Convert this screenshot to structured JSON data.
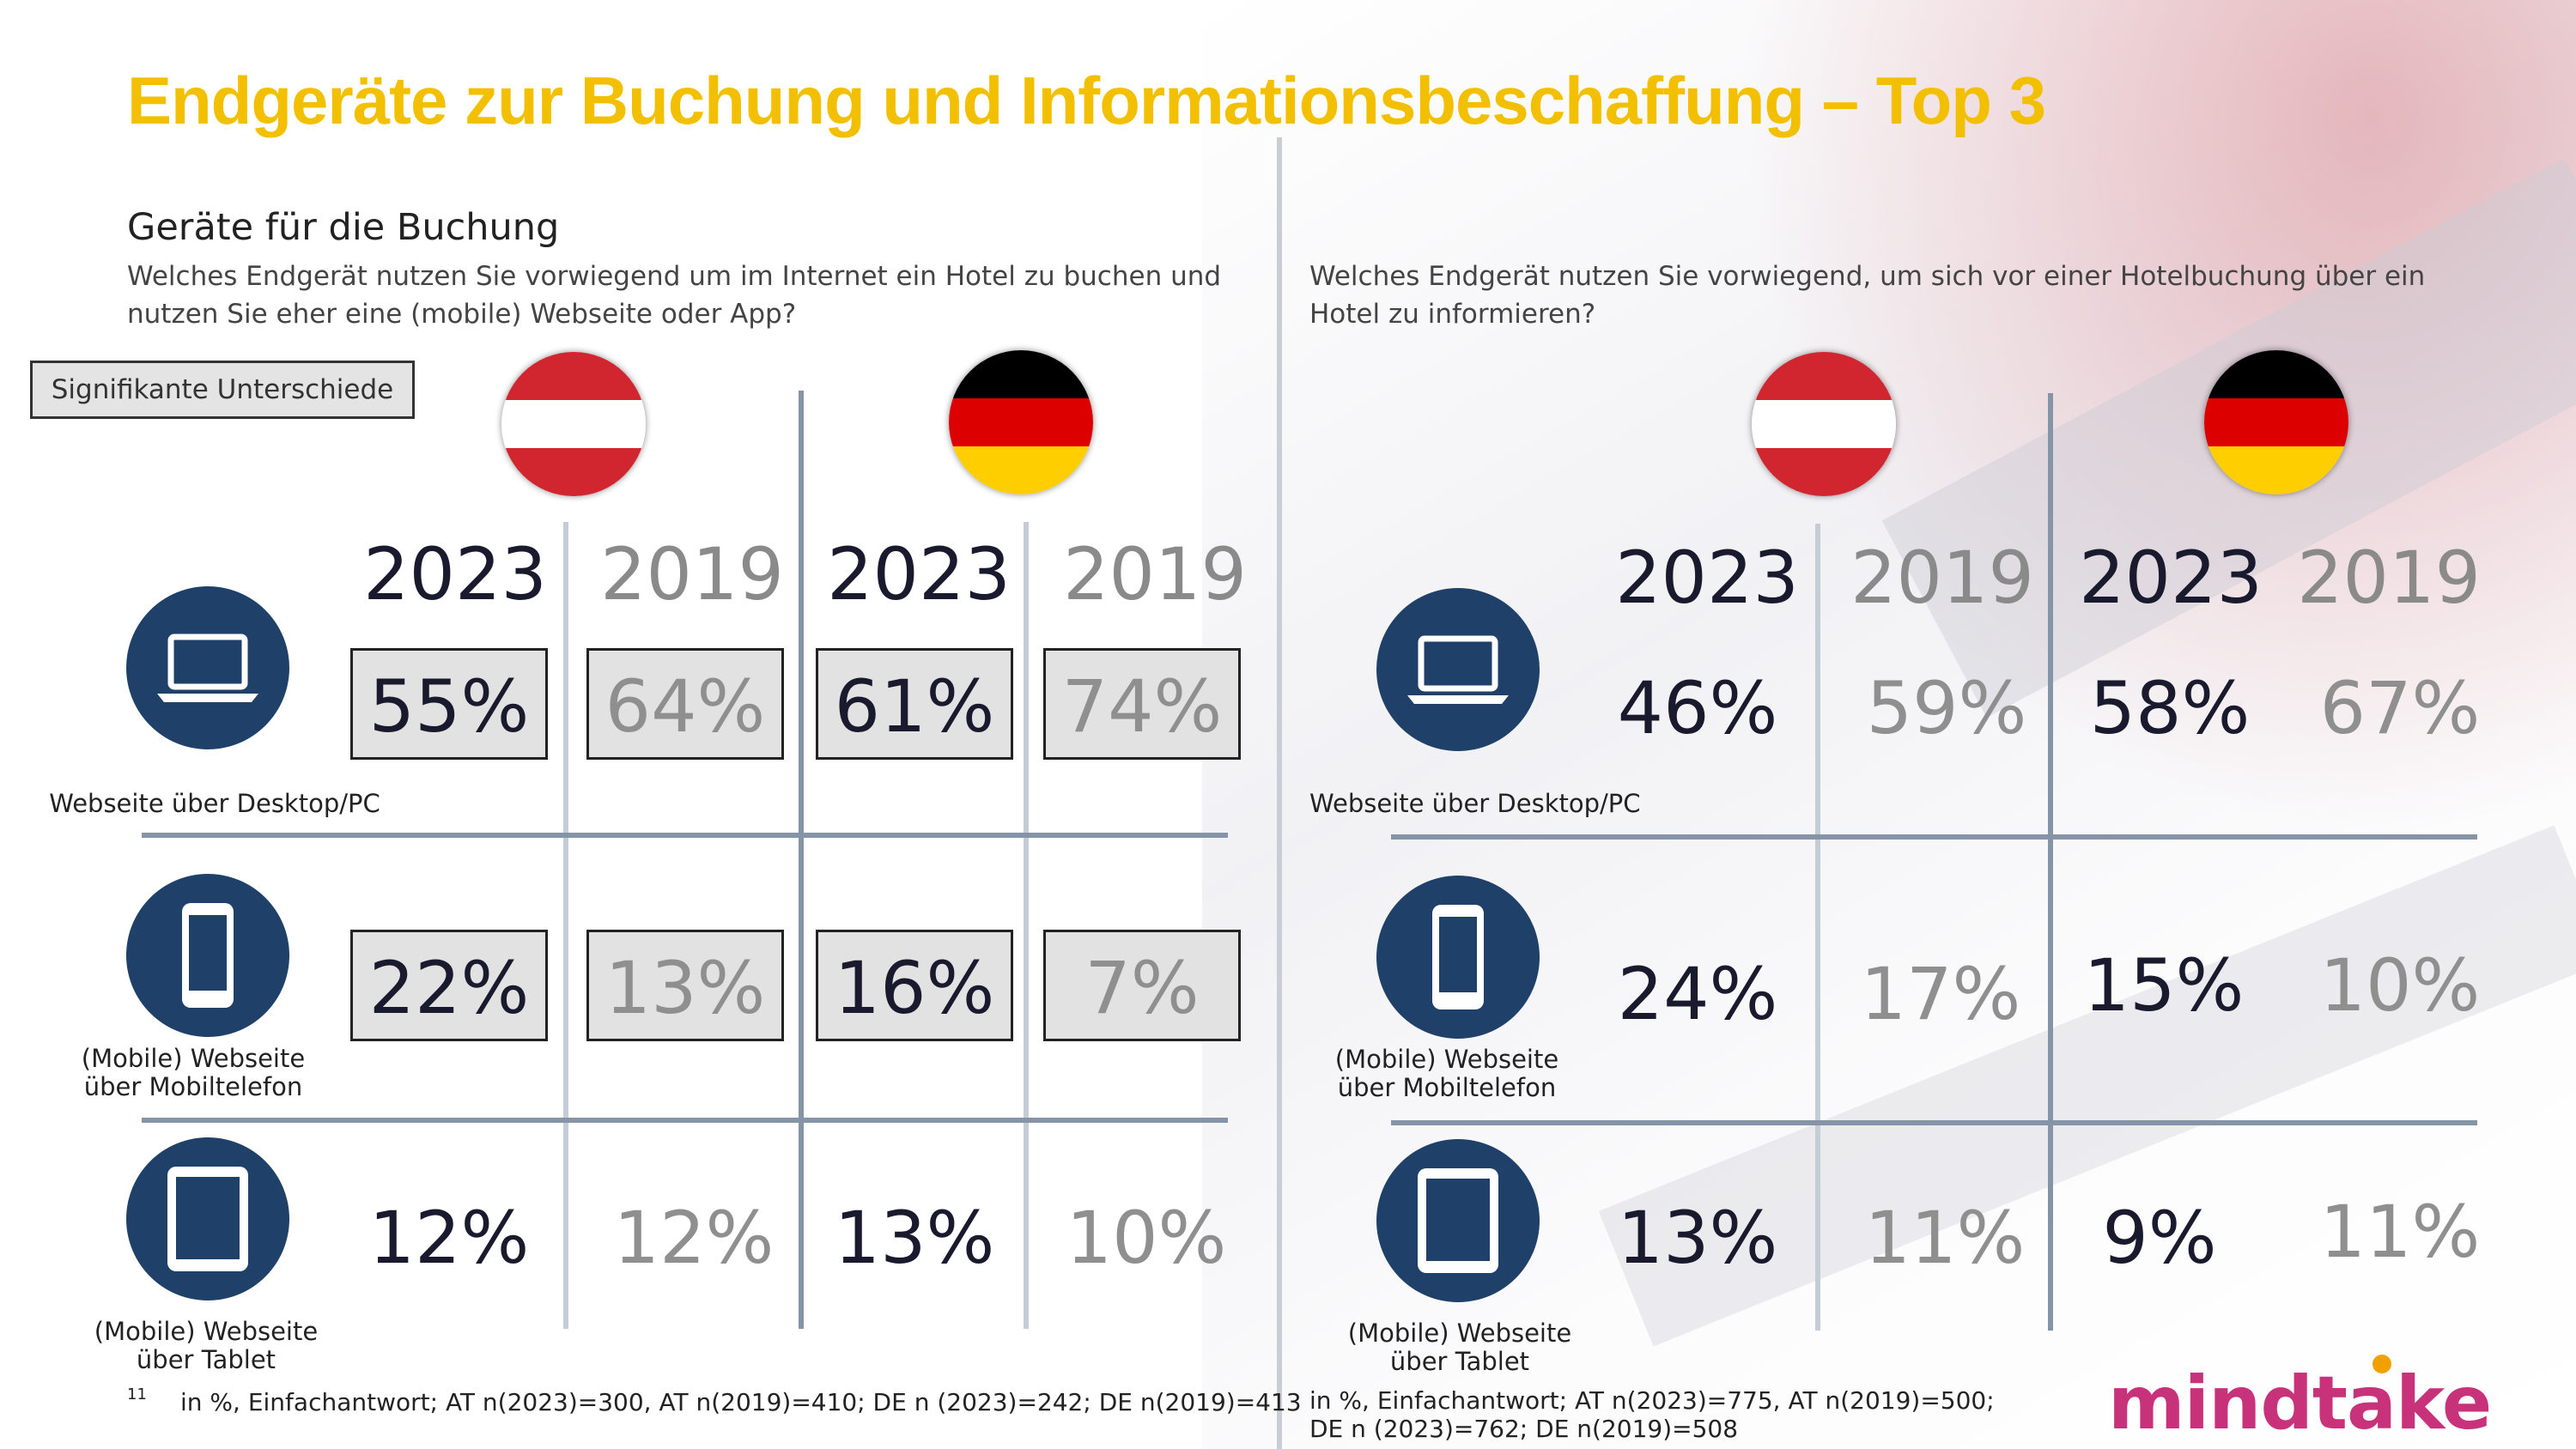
{
  "title": "Endgeräte zur Buchung und Informationsbeschaffung – Top 3",
  "left": {
    "subhead": "Geräte für die Buchung",
    "question_line1": "Welches Endgerät nutzen Sie vorwiegend um im Internet ein Hotel zu buchen und",
    "question_line2": "nutzen Sie eher eine (mobile) Webseite oder App?",
    "significance_label": "Signifikante Unterschiede",
    "years": [
      "2023",
      "2019",
      "2023",
      "2019"
    ],
    "rows": [
      {
        "label_line1": "Webseite über Desktop/PC",
        "label_line2": "",
        "values": [
          "55%",
          "64%",
          "61%",
          "74%"
        ]
      },
      {
        "label_line1": "(Mobile) Webseite",
        "label_line2": "über Mobiltelefon",
        "values": [
          "22%",
          "13%",
          "16%",
          "7%"
        ]
      },
      {
        "label_line1": "(Mobile) Webseite",
        "label_line2": "über Tablet",
        "values": [
          "12%",
          "12%",
          "13%",
          "10%"
        ]
      }
    ],
    "footnote_number": "11",
    "footnote": "in %, Einfachantwort; AT n(2023)=300, AT n(2019)=410; DE n (2023)=242; DE n(2019)=413"
  },
  "right": {
    "question_line1": "Welches Endgerät nutzen Sie vorwiegend, um sich vor einer Hotelbuchung über ein",
    "question_line2": "Hotel zu informieren?",
    "years": [
      "2023",
      "2019",
      "2023",
      "2019"
    ],
    "rows": [
      {
        "label_line1": "Webseite über Desktop/PC",
        "label_line2": "",
        "values": [
          "46%",
          "59%",
          "58%",
          "67%"
        ]
      },
      {
        "label_line1": "(Mobile) Webseite",
        "label_line2": "über Mobiltelefon",
        "values": [
          "24%",
          "17%",
          "15%",
          "10%"
        ]
      },
      {
        "label_line1": "(Mobile) Webseite",
        "label_line2": "über Tablet",
        "values": [
          "13%",
          "11%",
          "9%",
          "11%"
        ]
      }
    ],
    "footnote_line1": "in %, Einfachantwort; AT n(2023)=775, AT n(2019)=500;",
    "footnote_line2": "DE n (2023)=762; DE n(2019)=508"
  },
  "flags": {
    "austria": [
      "#d1262f",
      "#ffffff",
      "#d1262f"
    ],
    "germany": [
      "#000000",
      "#dd0000",
      "#ffce00"
    ]
  },
  "icons": [
    "laptop-icon",
    "smartphone-icon",
    "tablet-icon"
  ],
  "colors": {
    "title": "#F2C000",
    "icon_bg": "#1f4068",
    "logo": "#c8327a"
  },
  "logo": "mindtake"
}
